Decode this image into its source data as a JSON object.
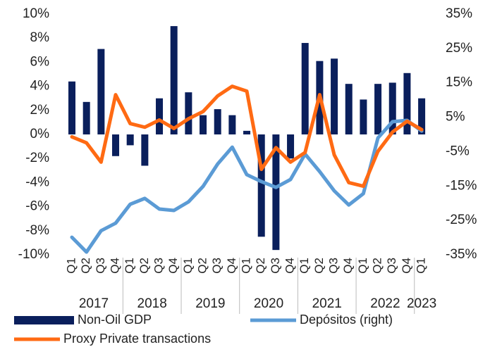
{
  "chart_data": {
    "type": "bar",
    "groups": [
      {
        "label": "2017",
        "categories": [
          "Q1",
          "Q2",
          "Q3",
          "Q4"
        ]
      },
      {
        "label": "2018",
        "categories": [
          "Q1",
          "Q2",
          "Q3",
          "Q4"
        ]
      },
      {
        "label": "2019",
        "categories": [
          "Q1",
          "Q2",
          "Q3",
          "Q4"
        ]
      },
      {
        "label": "2020",
        "categories": [
          "Q1",
          "Q2",
          "Q3",
          "Q4"
        ]
      },
      {
        "label": "2021",
        "categories": [
          "Q1",
          "Q2",
          "Q3",
          "Q4"
        ]
      },
      {
        "label": "2022",
        "categories": [
          "Q1",
          "Q2",
          "Q3",
          "Q4"
        ]
      },
      {
        "label": "2023",
        "categories": [
          "Q1"
        ]
      }
    ],
    "series": [
      {
        "name": "Non-Oil GDP",
        "type": "bar",
        "color": "#0a1f5c",
        "values": [
          4.4,
          2.7,
          7.1,
          -1.8,
          -0.9,
          -2.6,
          3.0,
          9.0,
          3.5,
          1.6,
          2.1,
          1.6,
          0.3,
          -8.5,
          -9.6,
          -2.0,
          7.6,
          6.1,
          6.3,
          4.2,
          2.9,
          4.2,
          4.3,
          5.1,
          3.0
        ]
      },
      {
        "name": "Depósitos (right)",
        "type": "line",
        "axis": "y2",
        "color": "#5b9bd5",
        "values": [
          -29.9,
          -34.2,
          -28.0,
          -25.8,
          -20.3,
          -18.6,
          -21.7,
          -22.1,
          -19.6,
          -15.1,
          -8.6,
          -3.7,
          -11.7,
          -13.7,
          -15.4,
          -13.1,
          -5.7,
          -10.8,
          -16.4,
          -20.5,
          -17.2,
          -1.0,
          3.7,
          4.1,
          1.0
        ]
      },
      {
        "name": "Proxy Private transactions",
        "type": "line",
        "color": "#ff6a13",
        "values": [
          -0.2,
          -0.7,
          -2.3,
          3.3,
          0.9,
          0.6,
          1.2,
          0.5,
          1.3,
          1.9,
          3.2,
          4.0,
          3.6,
          -2.9,
          -1.1,
          -2.3,
          -1.5,
          3.3,
          -1.7,
          -4.0,
          -4.3,
          -1.4,
          0.2,
          1.1,
          0.4
        ]
      }
    ],
    "ylim": [
      -10,
      10
    ],
    "yticks": [
      {
        "value": 10,
        "label": "10%"
      },
      {
        "value": 8,
        "label": "8%"
      },
      {
        "value": 6,
        "label": "6%"
      },
      {
        "value": 4,
        "label": "4%"
      },
      {
        "value": 2,
        "label": "2%"
      },
      {
        "value": 0,
        "label": "0%"
      },
      {
        "value": -2,
        "label": "-2%"
      },
      {
        "value": -4,
        "label": "-4%"
      },
      {
        "value": -6,
        "label": "-6%"
      },
      {
        "value": -8,
        "label": "-8%"
      },
      {
        "value": -10,
        "label": "-10%"
      }
    ],
    "y2lim": [
      -35,
      35
    ],
    "y2ticks": [
      {
        "value": 35,
        "label": "35%"
      },
      {
        "value": 25,
        "label": "25%"
      },
      {
        "value": 15,
        "label": "15%"
      },
      {
        "value": 5,
        "label": "5%"
      },
      {
        "value": -5,
        "label": "-5%"
      },
      {
        "value": -15,
        "label": "-15%"
      },
      {
        "value": -25,
        "label": "-25%"
      },
      {
        "value": -35,
        "label": "-35%"
      }
    ]
  }
}
